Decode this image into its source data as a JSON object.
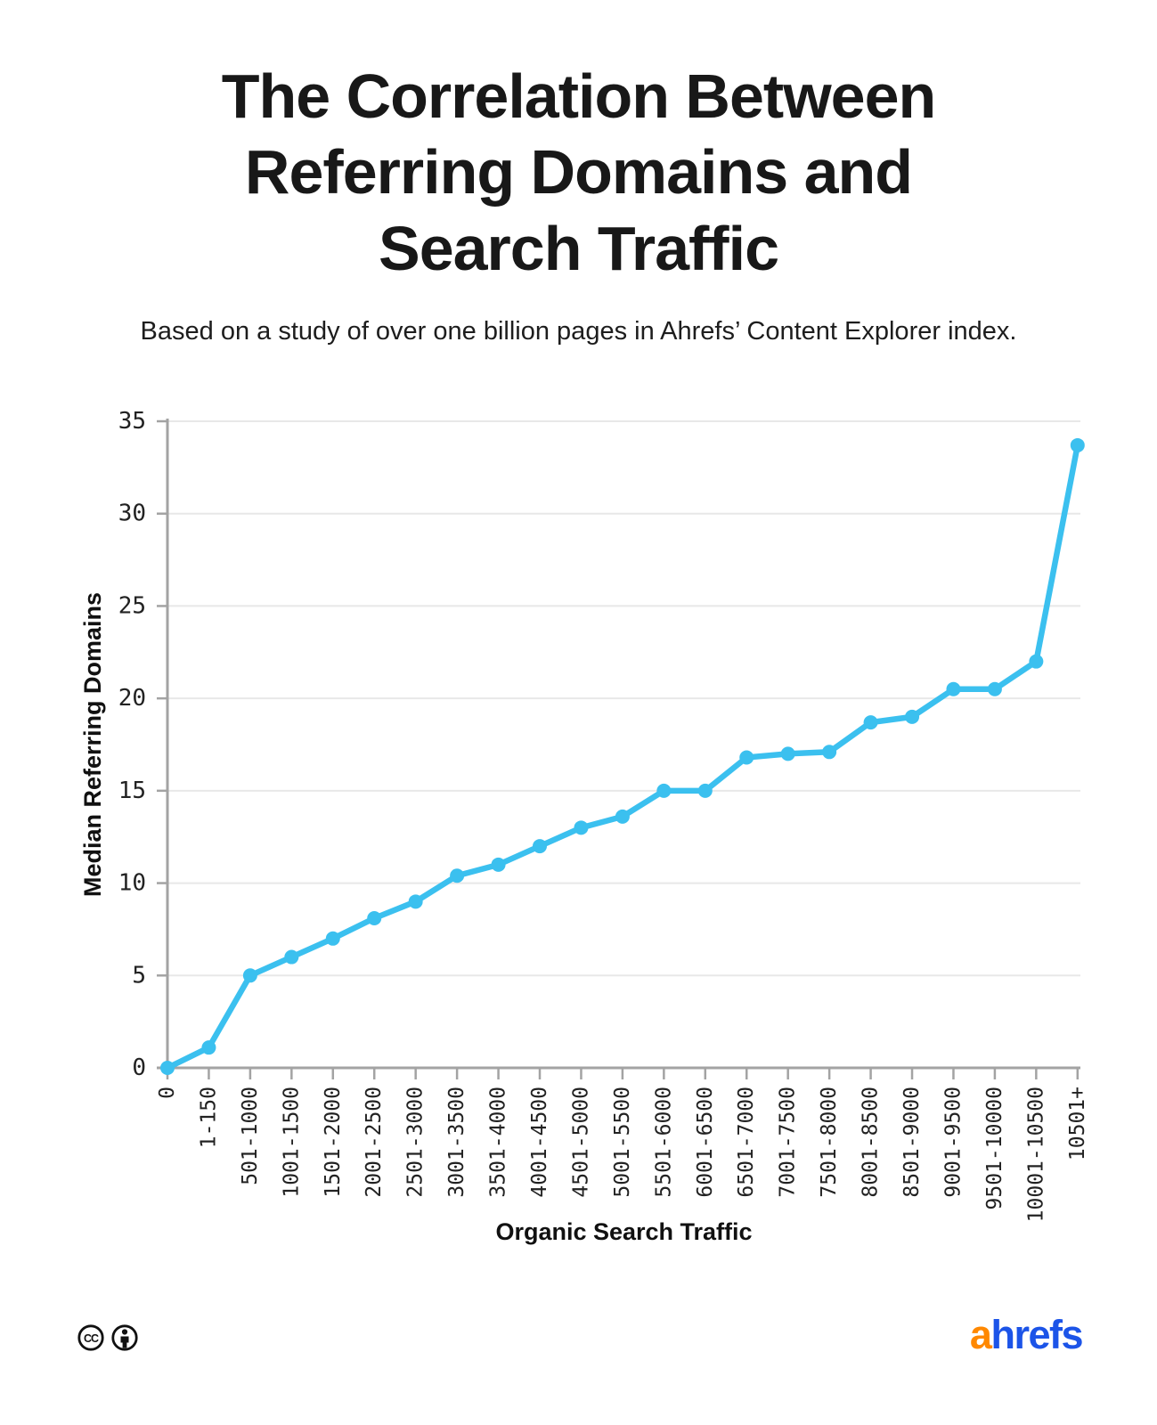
{
  "header": {
    "title": "The Correlation Between Referring Domains and Search Traffic",
    "subtitle": "Based on a study of over one billion pages in Ahrefs’ Content Explorer index."
  },
  "chart_data": {
    "type": "line",
    "title": "",
    "xlabel": "Organic Search Traffic",
    "ylabel": "Median Referring Domains",
    "categories": [
      "0",
      "1-150",
      "501-1000",
      "1001-1500",
      "1501-2000",
      "2001-2500",
      "2501-3000",
      "3001-3500",
      "3501-4000",
      "4001-4500",
      "4501-5000",
      "5001-5500",
      "5501-6000",
      "6001-6500",
      "6501-7000",
      "7001-7500",
      "7501-8000",
      "8001-8500",
      "8501-9000",
      "9001-9500",
      "9501-10000",
      "10001-10500",
      "10501+"
    ],
    "values": [
      0,
      1.1,
      5,
      6,
      7,
      8.1,
      9,
      10.4,
      11,
      12,
      13,
      13.6,
      15,
      15,
      16.8,
      17,
      17.1,
      18.7,
      19,
      20.5,
      20.5,
      22,
      33.7
    ],
    "ylim": [
      0,
      35
    ],
    "yticks": [
      0,
      5,
      10,
      15,
      20,
      25,
      30,
      35
    ],
    "grid": "horizontal",
    "legend": "none",
    "colors": {
      "line": "#3BC0EF",
      "marker": "#3BC0EF",
      "gridline": "#e8e8e8",
      "axis": "#a3a3a3",
      "tick_text": "#222222",
      "axis_title_text": "#111111"
    }
  },
  "footer": {
    "license": {
      "icons": [
        "cc-icon",
        "attribution-icon"
      ],
      "cc_text": "CC"
    },
    "logo": {
      "part1": "a",
      "part2": "hrefs",
      "part1_color": "#FF8800",
      "part2_color": "#1C54E8"
    }
  }
}
